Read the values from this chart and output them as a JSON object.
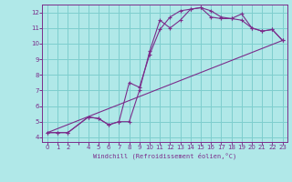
{
  "xlabel": "Windchill (Refroidissement éolien,°C)",
  "bg_color": "#b0e8e8",
  "grid_color": "#7ecece",
  "line_color": "#7b2d8b",
  "xlim": [
    -0.5,
    23.5
  ],
  "ylim": [
    3.7,
    12.5
  ],
  "xticks": [
    0,
    1,
    2,
    3,
    4,
    5,
    6,
    7,
    8,
    9,
    10,
    11,
    12,
    13,
    14,
    15,
    16,
    17,
    18,
    19,
    20,
    21,
    22,
    23
  ],
  "xtick_labels": [
    "0",
    "1",
    "2",
    "",
    "4",
    "5",
    "6",
    "7",
    "8",
    "9",
    "10",
    "11",
    "12",
    "13",
    "14",
    "15",
    "16",
    "17",
    "18",
    "19",
    "20",
    "21",
    "22",
    "23"
  ],
  "yticks": [
    4,
    5,
    6,
    7,
    8,
    9,
    10,
    11,
    12
  ],
  "line1_x": [
    0,
    1,
    2,
    4,
    5,
    6,
    7,
    8,
    9,
    10,
    11,
    12,
    13,
    14,
    15,
    16,
    17,
    18,
    19,
    20,
    21,
    22,
    23
  ],
  "line1_y": [
    4.3,
    4.3,
    4.3,
    5.3,
    5.2,
    4.8,
    5.0,
    5.0,
    7.0,
    9.5,
    11.5,
    11.0,
    11.5,
    12.2,
    12.3,
    12.1,
    11.7,
    11.6,
    11.9,
    11.0,
    10.8,
    10.9,
    10.2
  ],
  "line2_x": [
    0,
    1,
    2,
    4,
    5,
    6,
    7,
    8,
    9,
    10,
    11,
    12,
    13,
    14,
    15,
    16,
    17,
    18,
    19,
    20,
    21,
    22,
    23
  ],
  "line2_y": [
    4.3,
    4.3,
    4.3,
    5.3,
    5.2,
    4.8,
    5.0,
    7.5,
    7.2,
    9.3,
    10.9,
    11.7,
    12.1,
    12.2,
    12.3,
    11.7,
    11.6,
    11.6,
    11.5,
    11.0,
    10.8,
    10.9,
    10.2
  ],
  "line3_x": [
    0,
    23
  ],
  "line3_y": [
    4.3,
    10.2
  ]
}
